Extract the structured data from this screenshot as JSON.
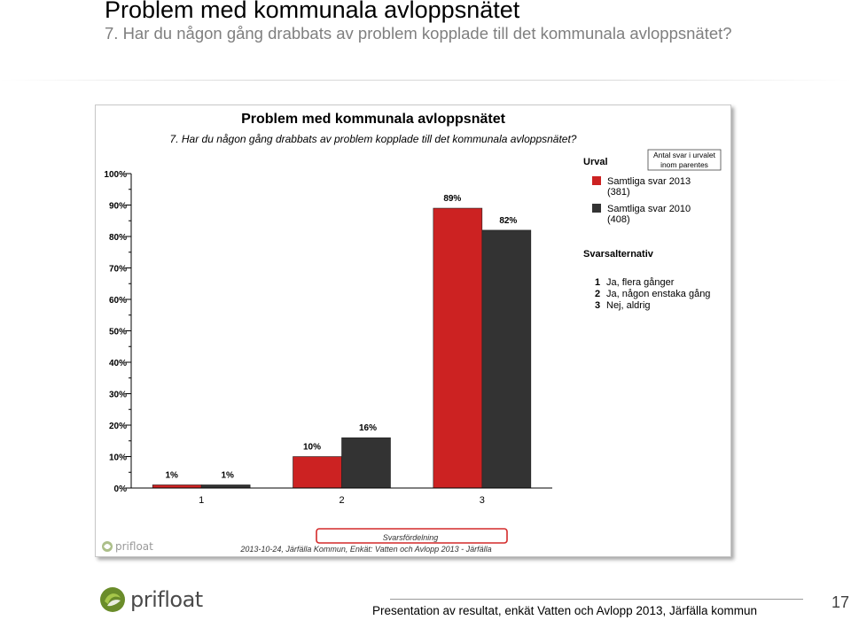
{
  "slide": {
    "title": "Problem med kommunala avloppsnätet",
    "subtitle": "7. Har du någon gång drabbats av problem kopplade till det kommunala avloppsnätet?"
  },
  "chart_data": {
    "type": "bar",
    "title": "Problem med kommunala avloppsnätet",
    "subtitle": "7. Har du någon gång drabbats av problem kopplade till det kommunala avloppsnätet?",
    "categories": [
      "1",
      "2",
      "3"
    ],
    "series": [
      {
        "name": "Samtliga svar 2013",
        "count": "(381)",
        "values": [
          1,
          10,
          89
        ],
        "color": "#cc2222"
      },
      {
        "name": "Samtliga svar 2010",
        "count": "(408)",
        "values": [
          1,
          16,
          82
        ],
        "color": "#333333"
      }
    ],
    "value_labels": [
      [
        "1%",
        "10%",
        "89%"
      ],
      [
        "1%",
        "16%",
        "82%"
      ]
    ],
    "y_ticks": [
      "0%",
      "10%",
      "20%",
      "30%",
      "40%",
      "50%",
      "60%",
      "70%",
      "80%",
      "90%",
      "100%"
    ],
    "ylim": [
      0,
      100
    ],
    "grid": false,
    "legend_title": "Urval",
    "legend_position": "top-right",
    "legend_note": [
      "Antal svar i urvalet",
      "inom parentes"
    ],
    "options_title": "Svarsalternativ",
    "options": [
      {
        "num": "1",
        "label": "Ja, flera gånger"
      },
      {
        "num": "2",
        "label": "Ja, någon enstaka gång"
      },
      {
        "num": "3",
        "label": "Nej, aldrig"
      }
    ],
    "chart_footer_title": "Svarsfördelning",
    "chart_footer_source": "2013-10-24, Järfälla Kommun, Enkät: Vatten och Avlopp 2013 - Järfälla",
    "inner_logo": "prifloat"
  },
  "footer": {
    "brand": "prifloat",
    "caption": "Presentation av resultat, enkät Vatten och Avlopp 2013, Järfälla kommun",
    "page": "17"
  },
  "colors": {
    "series_2013": "#cc2222",
    "series_2010": "#333333",
    "highlight_box": "#d42a2a",
    "logo_green": "#6a8c2a"
  }
}
